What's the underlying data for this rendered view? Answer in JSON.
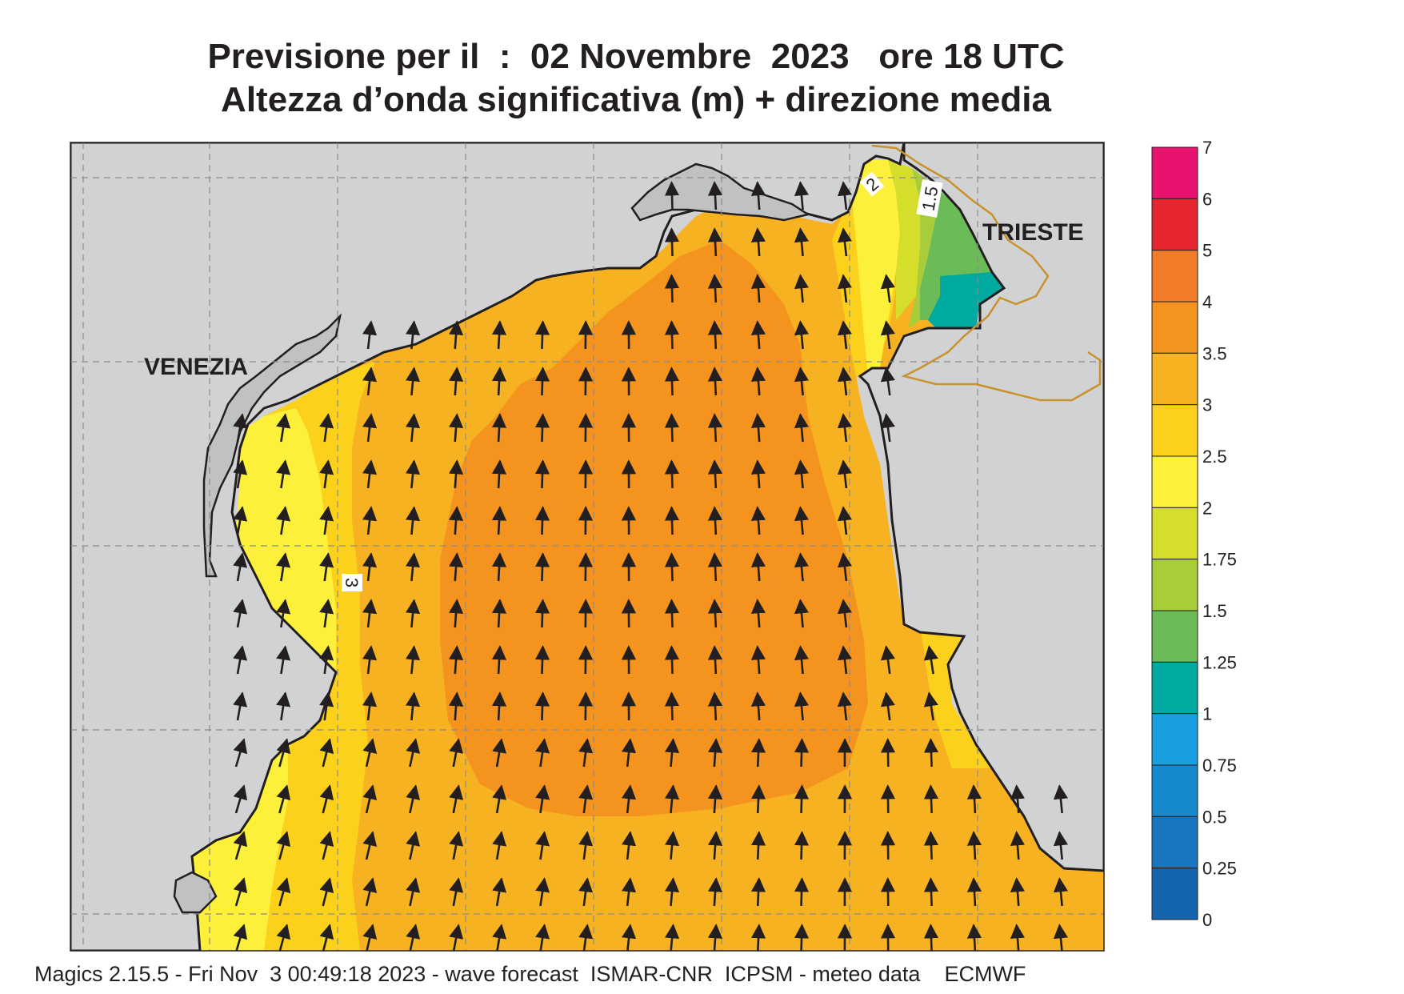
{
  "title": {
    "line1": "Previsione per il  :  02 Novembre  2023   ore 18 UTC",
    "line2": "Altezza d’onda significativa (m) + direzione media"
  },
  "places": {
    "venezia": "VENEZIA",
    "trieste": "TRIESTE"
  },
  "contour_labels": [
    "3",
    "1.5",
    "2"
  ],
  "colorbar": {
    "ticks": [
      "7",
      "6",
      "5",
      "4",
      "3.5",
      "3",
      "2.5",
      "2",
      "1.75",
      "1.5",
      "1.25",
      "1",
      "0.75",
      "0.5",
      "0.25",
      "0"
    ],
    "colors": [
      "#e8136f",
      "#e7262f",
      "#f07b28",
      "#f4941f",
      "#f6b221",
      "#fbd11b",
      "#fcf03a",
      "#d5df2b",
      "#a8cd3b",
      "#6bbb57",
      "#00aaa0",
      "#1a9fe0",
      "#1689cf",
      "#1776bf",
      "#1464b0"
    ]
  },
  "colors": {
    "land": "#d1d2d4",
    "sea_3_3_5": "#f6b221",
    "sea_3_5_4": "#f4941f",
    "coast": "#231f20",
    "arrow": "#231f20",
    "border": "#c9922b"
  },
  "footer": "Magics 2.15.5 - Fri Nov  3 00:49:18 2023 - wave forecast  ISMAR-CNR  ICPSM - meteo data    ECMWF"
}
